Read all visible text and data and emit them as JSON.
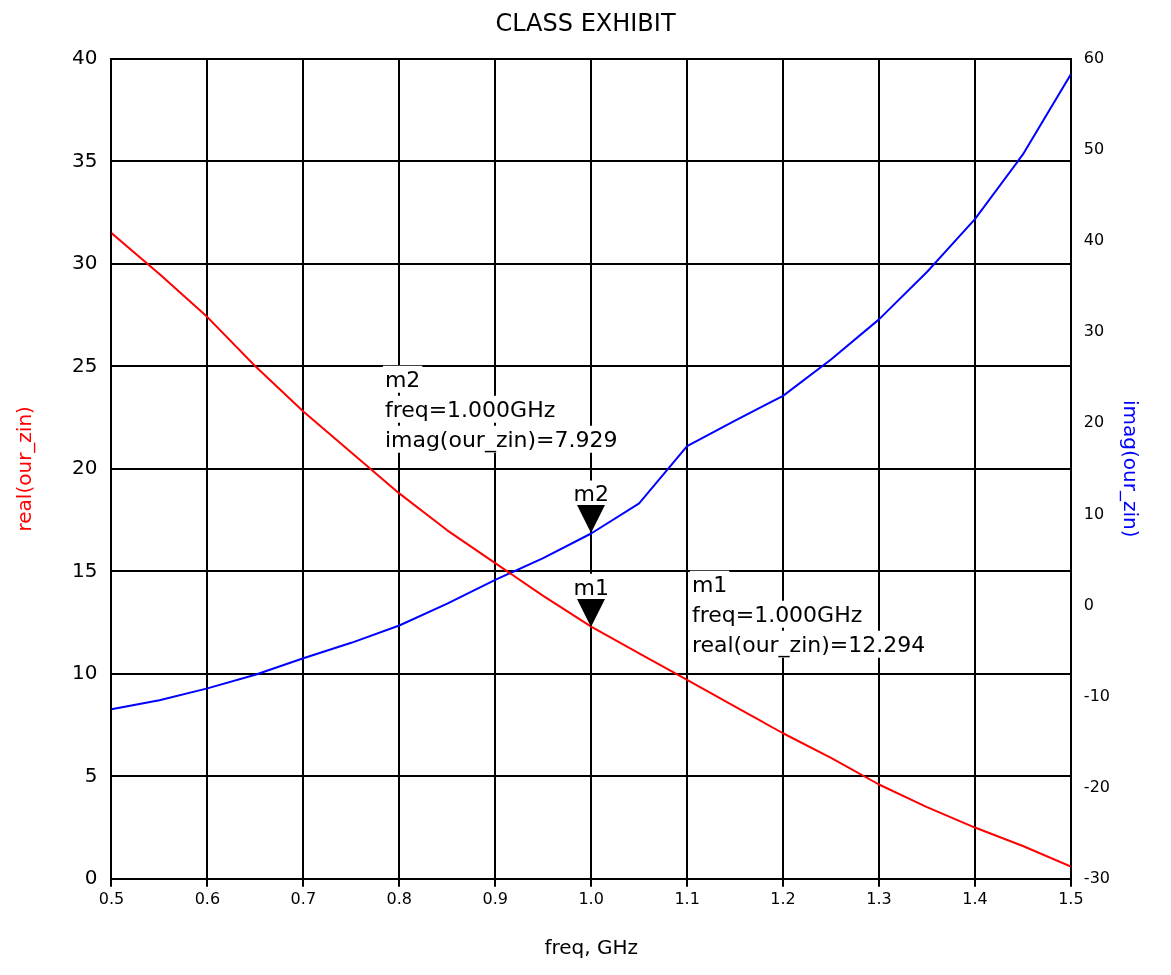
{
  "chart_data": {
    "type": "line",
    "title": "CLASS EXHIBIT",
    "xlabel": "freq, GHz",
    "ylabel": "real(our_zin)",
    "y2label": "imag(our_zin)",
    "x": [
      0.5,
      0.55,
      0.6,
      0.65,
      0.7,
      0.75,
      0.8,
      0.85,
      0.9,
      0.95,
      1.0,
      1.05,
      1.1,
      1.15,
      1.2,
      1.25,
      1.3,
      1.35,
      1.4,
      1.45,
      1.5
    ],
    "series": [
      {
        "color": "#ff0000",
        "values": [
          31.5,
          29.5,
          27.4,
          25.0,
          22.8,
          20.8,
          18.8,
          17.0,
          15.4,
          13.8,
          12.3,
          11.0,
          9.7,
          8.4,
          7.1,
          5.9,
          4.6,
          3.5,
          2.5,
          1.6,
          0.6
        ]
      },
      {
        "color": "#0000ff",
        "axis": "y2",
        "values": [
          -11.4,
          -10.4,
          -9.1,
          -7.6,
          -5.8,
          -4.1,
          -2.2,
          0.2,
          2.8,
          5.2,
          7.9,
          11.2,
          17.5,
          20.3,
          23.0,
          27.0,
          31.4,
          36.6,
          42.4,
          49.5,
          58.3
        ]
      }
    ],
    "xlim": [
      0.5,
      1.5
    ],
    "xticks": [
      0.5,
      0.6,
      0.7,
      0.8,
      0.9,
      {
        "value": 1.0,
        "label": "1.0"
      },
      1.1,
      1.2,
      1.3,
      1.4,
      1.5
    ],
    "ylim": [
      0,
      40
    ],
    "yticks": [
      0,
      5,
      10,
      15,
      20,
      25,
      30,
      35,
      40
    ],
    "y2lim": [
      -30,
      60
    ],
    "y2ticks": [
      -30,
      -20,
      -10,
      0,
      10,
      20,
      30,
      40,
      50,
      60
    ],
    "annotations": [
      "m2",
      "m2\nfreq=1.000GHz\nimag(our_zin)=7.929",
      {
        "text": "m1",
        "x": 1.0,
        "y": 12.3
      },
      "m1\nfreq=1.000GHz\nreal(our_zin)=12.294"
    ],
    "grid": true,
    "legend": false,
    "marker": "none",
    "line_style": "solid"
  }
}
